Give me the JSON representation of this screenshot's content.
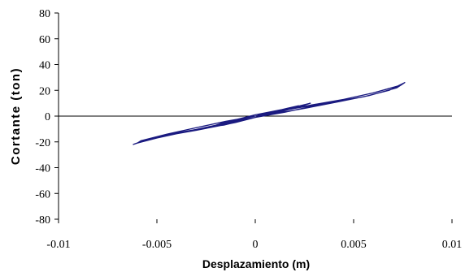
{
  "chart_data": {
    "type": "line",
    "title": "",
    "xlabel": "Desplazamiento (m)",
    "ylabel": "Cortante (ton)",
    "xlim": [
      -0.01,
      0.01
    ],
    "ylim": [
      -80,
      80
    ],
    "x_ticks": [
      -0.01,
      -0.005,
      0,
      0.005,
      0.01
    ],
    "x_tick_labels": [
      "-0.01",
      "-0.005",
      "0",
      "0.005",
      "0.01"
    ],
    "y_ticks": [
      -80,
      -60,
      -40,
      -20,
      0,
      20,
      40,
      60,
      80
    ],
    "y_tick_labels": [
      "-80",
      "-60",
      "-40",
      "-20",
      "0",
      "20",
      "40",
      "60",
      "80"
    ],
    "grid": false,
    "legend": "none",
    "line_color": "#1a1a80",
    "series": [
      {
        "x": [
          0,
          0.0008,
          0.0016,
          0.0022,
          0.0016,
          0.0008,
          0,
          -0.0008,
          -0.0016,
          -0.0022,
          -0.0016,
          -0.0008,
          0,
          0.001,
          0.002,
          0.0028,
          0.002,
          0.001,
          0,
          -0.001,
          -0.002,
          -0.003,
          -0.002,
          -0.001,
          0,
          0.0015,
          0.003,
          0.0045,
          0.006,
          0.0072,
          0.0076,
          0.0074,
          0.006,
          0.0045,
          0.003,
          0.0015,
          0,
          -0.0015,
          -0.003,
          -0.0045,
          -0.0055,
          -0.0062,
          -0.006,
          -0.005,
          -0.0035,
          -0.002,
          -0.001,
          0,
          0.002,
          0.004,
          0.0055,
          0.0068,
          0.0075,
          0.0072,
          0.0058,
          0.0042,
          0.0025,
          0.001,
          -0.001,
          -0.0025,
          -0.004,
          -0.0052,
          -0.006,
          -0.0058,
          -0.0045,
          -0.003,
          -0.0015,
          0,
          0.0012,
          0.0024,
          0.0012,
          0,
          -0.0012,
          -0.0024,
          -0.0012,
          0
        ],
        "y": [
          0,
          3,
          6,
          8,
          5,
          2,
          -1,
          -4,
          -7,
          -8,
          -5,
          -2,
          1,
          4,
          7,
          10,
          6,
          3,
          -1,
          -5,
          -8,
          -11,
          -7,
          -3,
          1,
          5,
          9,
          13,
          18,
          23,
          26,
          24,
          18,
          13,
          8,
          3,
          -1,
          -6,
          -11,
          -15,
          -18,
          -22,
          -21,
          -17,
          -12,
          -7,
          -3,
          1,
          6,
          11,
          15,
          20,
          25,
          22,
          16,
          11,
          6,
          2,
          -4,
          -9,
          -13,
          -17,
          -21,
          -19,
          -14,
          -9,
          -4,
          0,
          4,
          8,
          3,
          -1,
          -5,
          -9,
          -4,
          0
        ]
      }
    ]
  }
}
